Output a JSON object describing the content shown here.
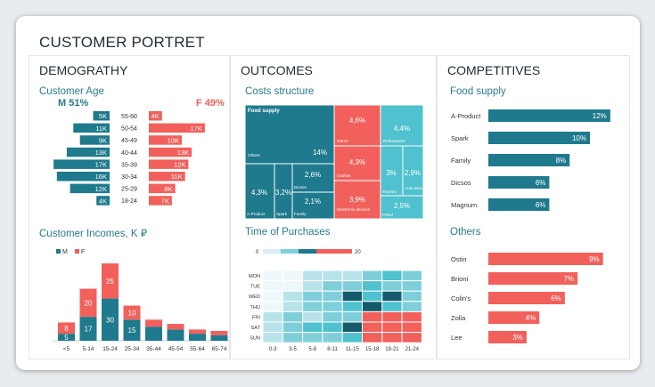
{
  "title": "CUSTOMER PORTRET",
  "colors": {
    "teal": "#1e7a8c",
    "red": "#f2605c",
    "light": "#b8e3ea",
    "mid": "#7fcfda",
    "aqua": "#4fc1cf",
    "dark": "#155a6b"
  },
  "panels": {
    "demography": {
      "title": "DEMOGRATHY",
      "age_title": "Customer Age",
      "income_title": "Customer Incomes, K ₽"
    },
    "outcomes": {
      "title": "OUTCOMES",
      "costs_title": "Costs structure",
      "time_title": "Time of Purchases"
    },
    "competitives": {
      "title": "COMPETITIVES",
      "food_title": "Food supply",
      "others_title": "Others"
    }
  },
  "chart_data": [
    {
      "id": "customer_age",
      "type": "bar",
      "title": "Customer Age",
      "male_label": "M 51%",
      "female_label": "F 49%",
      "categories": [
        "55-60",
        "50-54",
        "45-49",
        "40-44",
        "35-39",
        "30-34",
        "25-29",
        "18-24"
      ],
      "series": [
        {
          "name": "M",
          "values": [
            5,
            11,
            9,
            13,
            17,
            16,
            12,
            4
          ],
          "labels": [
            "5K",
            "11K",
            "9K",
            "13K",
            "17K",
            "16K",
            "12K",
            "4K"
          ]
        },
        {
          "name": "F",
          "values": [
            4,
            17,
            10,
            13,
            12,
            11,
            8,
            7
          ],
          "labels": [
            "4K",
            "17K",
            "10K",
            "13K",
            "12K",
            "11K",
            "8K",
            "7K"
          ]
        }
      ]
    },
    {
      "id": "customer_incomes",
      "type": "bar",
      "stacked": true,
      "title": "Customer Incomes, K ₽",
      "legend": [
        "M",
        "F"
      ],
      "categories": [
        "<5",
        "5-14",
        "15-24",
        "25-34",
        "35-44",
        "45-54",
        "55-64",
        "65-74"
      ],
      "series": [
        {
          "name": "M",
          "values": [
            5,
            17,
            30,
            15,
            10,
            8,
            5,
            4
          ],
          "labels": [
            "5",
            "17",
            "30",
            "15",
            "",
            "",
            "",
            ""
          ]
        },
        {
          "name": "F",
          "values": [
            8,
            20,
            25,
            10,
            5,
            4,
            3,
            3
          ],
          "labels": [
            "8",
            "20",
            "25",
            "10",
            "",
            "",
            "",
            ""
          ]
        }
      ]
    },
    {
      "id": "costs_structure",
      "type": "table",
      "title": "Costs structure",
      "tiles": [
        {
          "label": "Food supply",
          "value": ""
        },
        {
          "label": "Others",
          "value": "14%"
        },
        {
          "label": "A-Product",
          "value": "4,3%"
        },
        {
          "label": "Spark",
          "value": "3,2%"
        },
        {
          "label": "Dicsos",
          "value": "2,6%"
        },
        {
          "label": "Family",
          "value": "2,1%"
        },
        {
          "label": "Genre",
          "value": "4,6%"
        },
        {
          "label": "Clothes",
          "value": "4,3%"
        },
        {
          "label": "Electronic devices",
          "value": "3,9%"
        },
        {
          "label": "Restaurants",
          "value": "4,4%"
        },
        {
          "label": "Tourism",
          "value": "3%"
        },
        {
          "label": "Auto leisure",
          "value": "2,9%"
        },
        {
          "label": "Petrol",
          "value": "2,5%"
        }
      ]
    },
    {
      "id": "time_of_purchases",
      "type": "heatmap",
      "title": "Time of Purchases",
      "scale": [
        "0",
        "20"
      ],
      "rows": [
        "MON",
        "TUE",
        "WED",
        "THU",
        "FRI",
        "SAT",
        "SUN"
      ],
      "columns": [
        "0-3",
        "3-5",
        "5-8",
        "8-11",
        "11-15",
        "15-18",
        "18-21",
        "21-24"
      ],
      "levels": [
        [
          0,
          0,
          1,
          1,
          1,
          2,
          3,
          2
        ],
        [
          0,
          0,
          1,
          2,
          2,
          3,
          2,
          2
        ],
        [
          0,
          1,
          2,
          2,
          4,
          3,
          4,
          2
        ],
        [
          0,
          1,
          2,
          2,
          3,
          4,
          3,
          2
        ],
        [
          1,
          2,
          1,
          2,
          2,
          5,
          5,
          5
        ],
        [
          1,
          2,
          3,
          3,
          4,
          5,
          5,
          5
        ],
        [
          1,
          2,
          2,
          2,
          3,
          5,
          5,
          5
        ]
      ]
    },
    {
      "id": "food_supply",
      "type": "bar",
      "orientation": "horizontal",
      "title": "Food supply",
      "categories": [
        "A-Product",
        "Spark",
        "Family",
        "Dicsos",
        "Magnum"
      ],
      "values": [
        12,
        10,
        8,
        6,
        6
      ],
      "labels": [
        "12%",
        "10%",
        "8%",
        "6%",
        "6%"
      ]
    },
    {
      "id": "others",
      "type": "bar",
      "orientation": "horizontal",
      "title": "Others",
      "categories": [
        "Ostin",
        "Brioni",
        "Colin's",
        "Zolla",
        "Lee"
      ],
      "values": [
        9,
        7,
        6,
        4,
        3
      ],
      "labels": [
        "9%",
        "7%",
        "6%",
        "4%",
        "3%"
      ]
    }
  ]
}
